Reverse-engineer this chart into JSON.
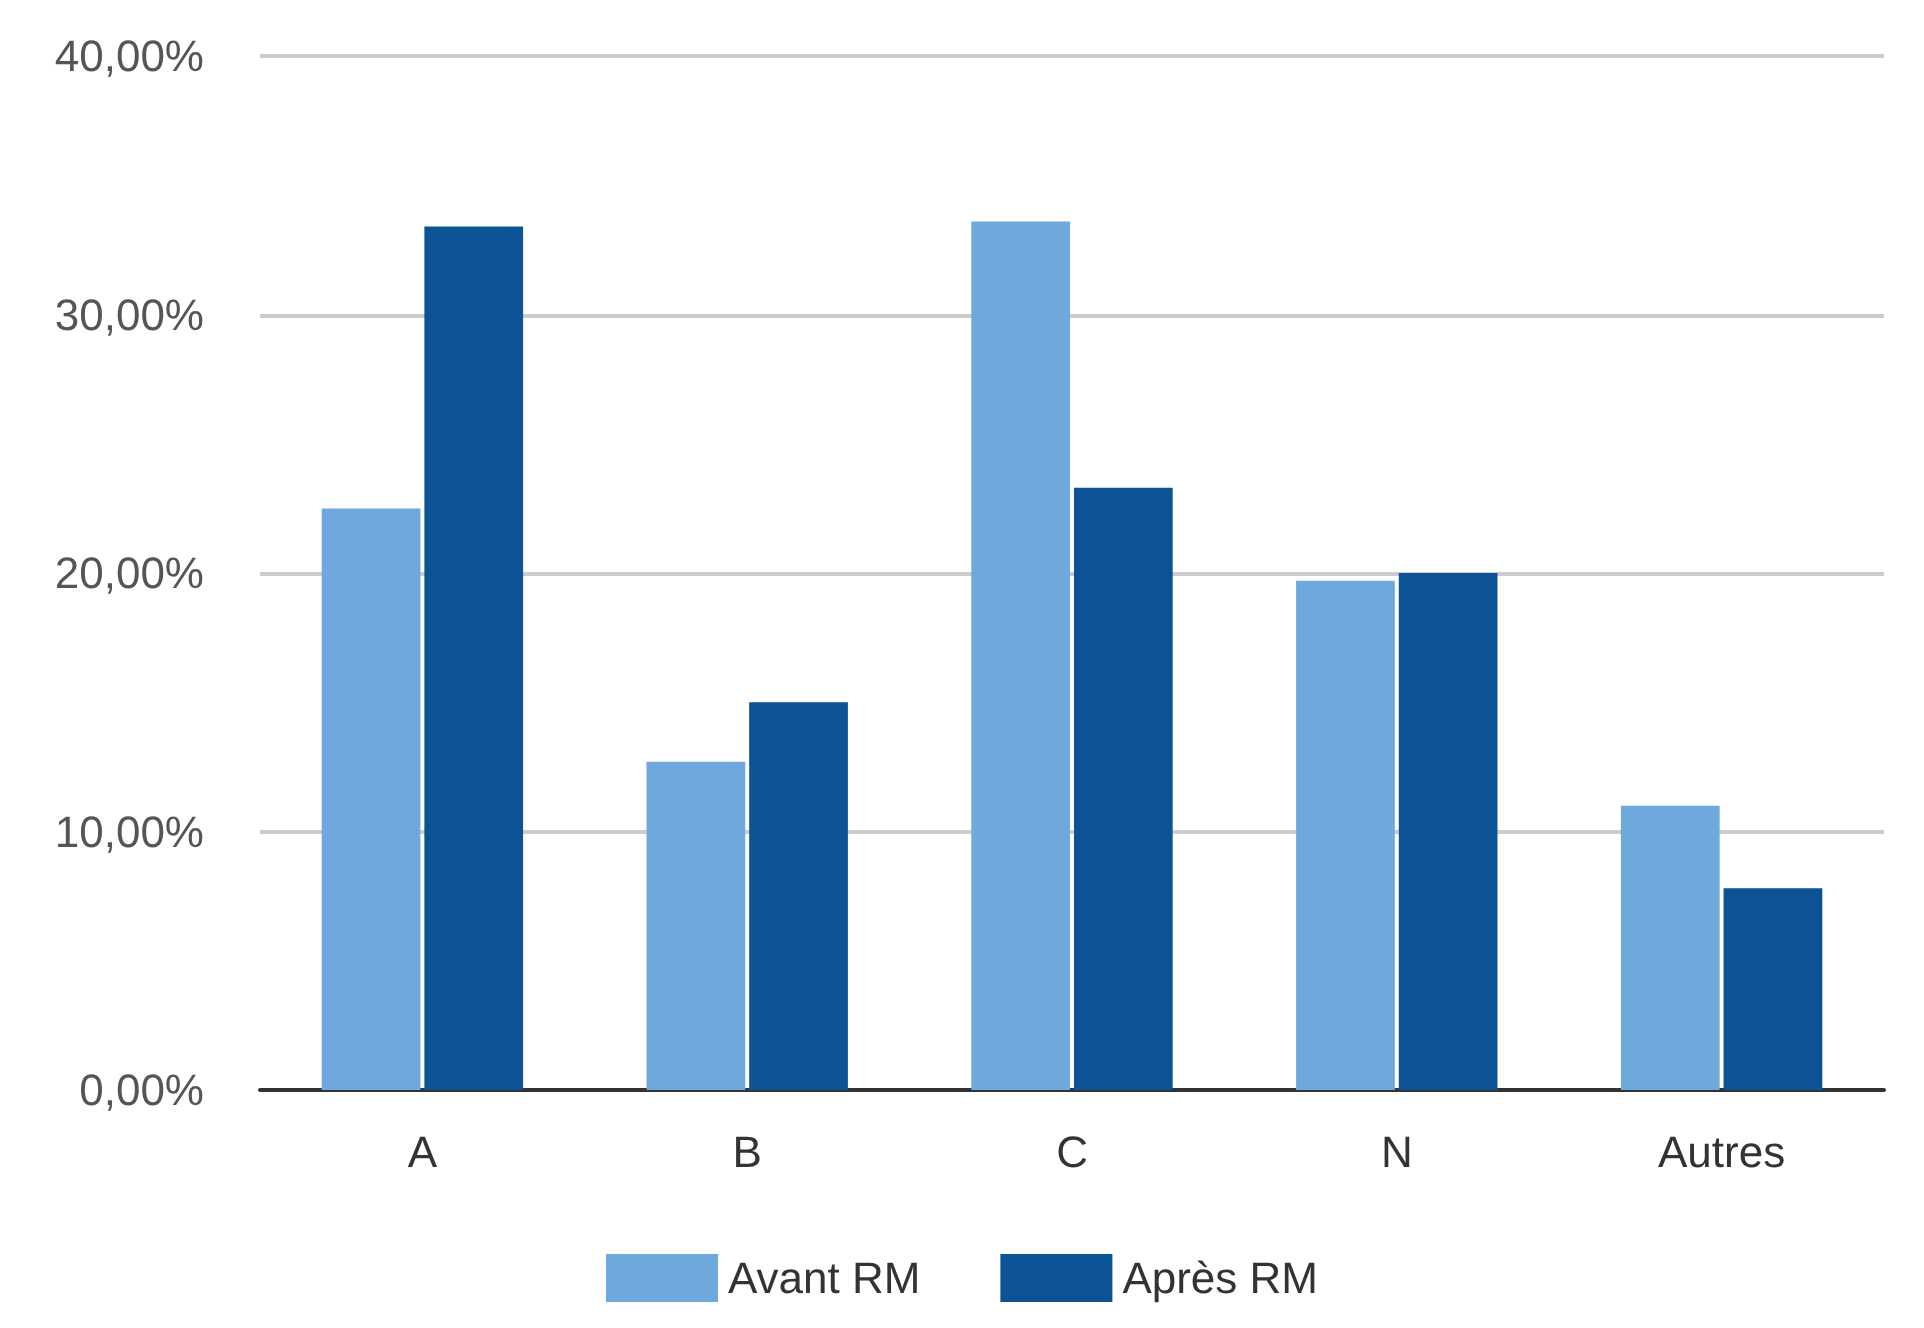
{
  "chart_data": {
    "type": "bar",
    "categories": [
      "A",
      "B",
      "C",
      "N",
      "Autres"
    ],
    "series": [
      {
        "name": "Avant RM",
        "color": "#6fa8dc",
        "values": [
          22.5,
          12.7,
          33.6,
          19.7,
          11.0
        ]
      },
      {
        "name": "Après RM",
        "color": "#0b5394",
        "values": [
          33.4,
          15.0,
          23.3,
          20.0,
          7.8
        ]
      }
    ],
    "ylim": [
      0,
      40
    ],
    "yticks": [
      {
        "value": 0,
        "label": "0,00%"
      },
      {
        "value": 10,
        "label": "10,00%"
      },
      {
        "value": 20,
        "label": "20,00%"
      },
      {
        "value": 30,
        "label": "30,00%"
      },
      {
        "value": 40,
        "label": "40,00%"
      }
    ],
    "grid": "y",
    "legend": "bottom"
  }
}
